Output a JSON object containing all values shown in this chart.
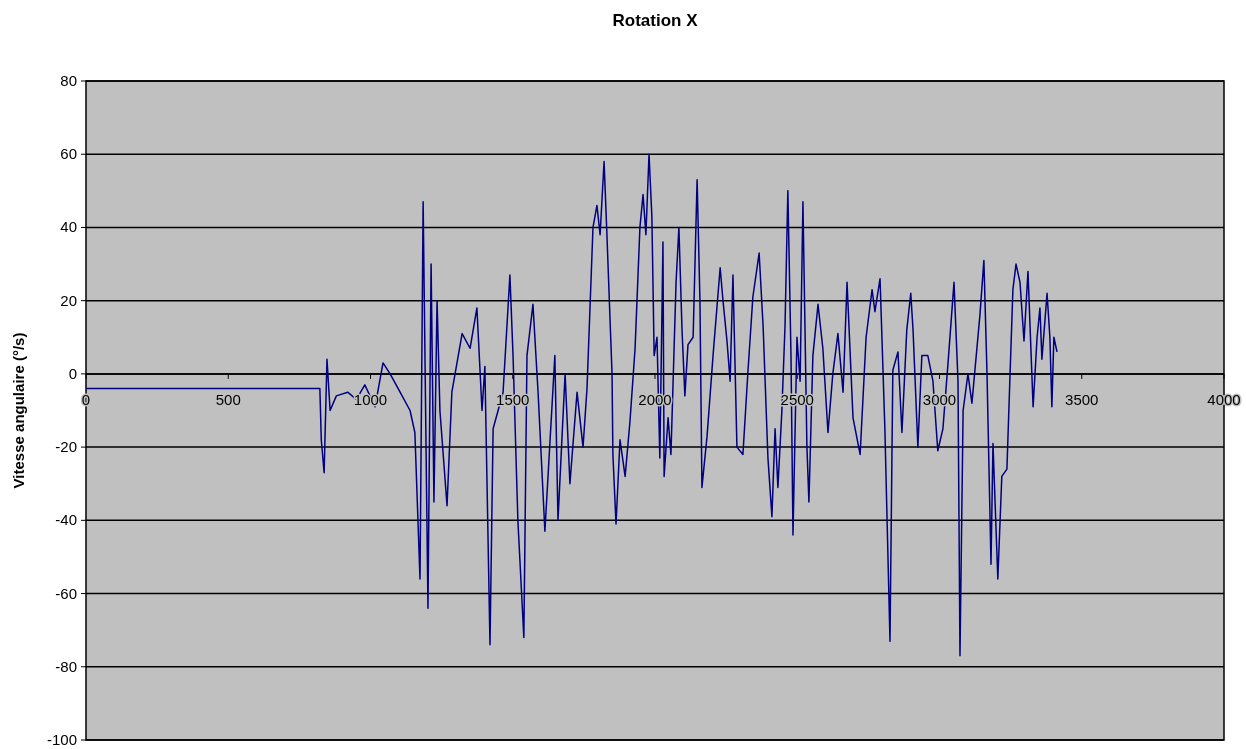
{
  "chart_data": {
    "type": "line",
    "title": "Rotation X",
    "ylabel": "Vitesse angulaire (°/s)",
    "xlim": [
      0,
      4000
    ],
    "xticks": [
      0,
      500,
      1000,
      1500,
      2000,
      2500,
      3000,
      3500,
      4000
    ],
    "ylim": [
      -100,
      80
    ],
    "yticks": [
      -100,
      -80,
      -60,
      -40,
      -20,
      0,
      20,
      40,
      60,
      80
    ],
    "grid": "y",
    "marker": "none",
    "line_style": "solid",
    "series": [
      {
        "color": "#000080",
        "x": [
          0,
          822,
          827,
          837,
          847,
          858,
          880,
          920,
          950,
          980,
          1016,
          1044,
          1069,
          1104,
          1139,
          1156,
          1174,
          1185,
          1202,
          1213,
          1223,
          1234,
          1244,
          1269,
          1286,
          1322,
          1350,
          1374,
          1392,
          1402,
          1420,
          1431,
          1466,
          1490,
          1501,
          1518,
          1539,
          1550,
          1571,
          1589,
          1613,
          1648,
          1659,
          1684,
          1701,
          1726,
          1747,
          1761,
          1782,
          1796,
          1807,
          1821,
          1831,
          1849,
          1852,
          1863,
          1877,
          1895,
          1912,
          1930,
          1947,
          1958,
          1968,
          1979,
          1989,
          1997,
          2007,
          2017,
          2028,
          2032,
          2046,
          2056,
          2074,
          2084,
          2095,
          2105,
          2116,
          2134,
          2148,
          2158,
          2165,
          2183,
          2204,
          2229,
          2239,
          2253,
          2264,
          2274,
          2288,
          2309,
          2327,
          2344,
          2366,
          2380,
          2397,
          2411,
          2422,
          2432,
          2446,
          2457,
          2467,
          2478,
          2485,
          2499,
          2510,
          2520,
          2534,
          2541,
          2555,
          2573,
          2590,
          2608,
          2625,
          2643,
          2661,
          2675,
          2696,
          2721,
          2742,
          2763,
          2773,
          2791,
          2808,
          2826,
          2836,
          2854,
          2868,
          2885,
          2899,
          2907,
          2924,
          2938,
          2959,
          2977,
          2994,
          3012,
          3030,
          3051,
          3065,
          3072,
          3083,
          3100,
          3114,
          3142,
          3156,
          3167,
          3181,
          3188,
          3205,
          3219,
          3237,
          3248,
          3258,
          3269,
          3283,
          3297,
          3311,
          3329,
          3343,
          3353,
          3360,
          3378,
          3388,
          3395,
          3402,
          3413
        ],
        "values": [
          -4,
          -4,
          -18,
          -27,
          4,
          -10,
          -6,
          -5,
          -7,
          -3,
          -9,
          3,
          0,
          -5,
          -10,
          -16,
          -56,
          47,
          -64,
          30,
          -35,
          20,
          -10,
          -36,
          -5,
          11,
          7,
          18,
          -10,
          2,
          -74,
          -15,
          -5,
          27,
          5,
          -40,
          -72,
          5,
          19,
          -5,
          -43,
          5,
          -40,
          0,
          -30,
          -5,
          -20,
          -4,
          40,
          46,
          38,
          58,
          38,
          0,
          -22,
          -41,
          -18,
          -28,
          -13,
          7,
          40,
          49,
          38,
          60,
          43,
          5,
          10,
          -23,
          36,
          -28,
          -12,
          -22,
          25,
          40,
          12,
          -6,
          8,
          10,
          53,
          20,
          -31,
          -17,
          5,
          29,
          20,
          9,
          -2,
          27,
          -20,
          -22,
          1,
          21,
          33,
          13,
          -23,
          -39,
          -15,
          -31,
          -10,
          13,
          50,
          5,
          -44,
          10,
          -2,
          47,
          -20,
          -35,
          5,
          19,
          7,
          -16,
          0,
          11,
          -5,
          25,
          -12,
          -22,
          10,
          23,
          17,
          26,
          -15,
          -73,
          1,
          6,
          -16,
          12,
          22,
          12,
          -20,
          5,
          5,
          -2,
          -21,
          -15,
          3,
          25,
          -2,
          -77,
          -10,
          0,
          -8,
          16,
          31,
          0,
          -52,
          -19,
          -56,
          -28,
          -26,
          0,
          23,
          30,
          25,
          9,
          28,
          -9,
          10,
          18,
          4,
          22,
          10,
          -9,
          10,
          6
        ]
      }
    ]
  }
}
